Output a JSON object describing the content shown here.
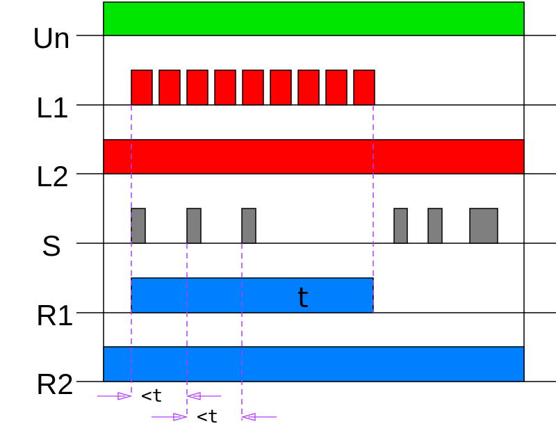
{
  "colors": {
    "supply": "#00e600",
    "line": "#ff0000",
    "sensor": "#7f7f7f",
    "relay": "#0080ff",
    "marker": "#b03cff",
    "outline": "#000000"
  },
  "rows": [
    {
      "id": "un",
      "label": "Un"
    },
    {
      "id": "l1",
      "label": "L1"
    },
    {
      "id": "l2",
      "label": "L2"
    },
    {
      "id": "s",
      "label": "S"
    },
    {
      "id": "r1",
      "label": "R1",
      "inner_label": "t"
    },
    {
      "id": "r2",
      "label": "R2"
    }
  ],
  "dimensions": [
    {
      "label": "<t"
    },
    {
      "label": "<t"
    }
  ]
}
